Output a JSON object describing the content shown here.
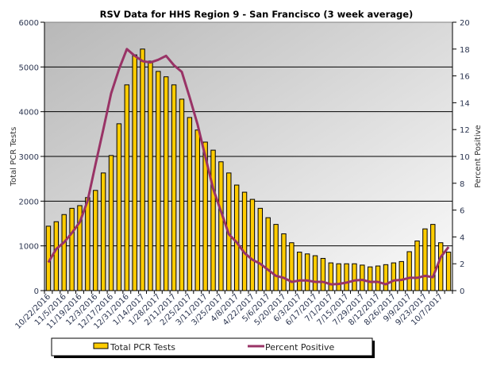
{
  "chart_data": {
    "type": "bar",
    "title": "RSV Data for HHS Region 9 - San Francisco (3 week average)",
    "ylabel": "Total PCR Tests",
    "y2label": "Percent Positive",
    "ylim": [
      0,
      6000
    ],
    "yticks": [
      0,
      1000,
      2000,
      3000,
      4000,
      5000,
      6000
    ],
    "y2lim": [
      0,
      20
    ],
    "y2ticks": [
      0,
      2,
      4,
      6,
      8,
      10,
      12,
      14,
      16,
      18,
      20
    ],
    "grid": true,
    "legend_position": "bottom",
    "categories": [
      "10/22/2016",
      "",
      "11/5/2016",
      "",
      "11/19/2016",
      "",
      "12/3/2016",
      "",
      "12/17/2016",
      "",
      "12/31/2016",
      "",
      "1/14/2017",
      "",
      "1/28/2017",
      "",
      "2/11/2017",
      "",
      "2/25/2017",
      "",
      "3/11/2017",
      "",
      "3/25/2017",
      "",
      "4/8/2017",
      "",
      "4/22/2017",
      "",
      "5/6/2017",
      "",
      "5/20/2017",
      "",
      "6/3/2017",
      "",
      "6/17/2017",
      "",
      "7/1/2017",
      "",
      "7/15/2017",
      "",
      "7/29/2017",
      "",
      "8/12/2017",
      "",
      "8/26/2017",
      "",
      "9/9/2017",
      "",
      "9/23/2017",
      "",
      "10/7/2017",
      ""
    ],
    "series": [
      {
        "name": "Total PCR Tests",
        "type": "bar",
        "axis": "left",
        "color": "#FFCC00",
        "values": [
          1440,
          1540,
          1700,
          1840,
          1900,
          2080,
          2240,
          2630,
          3020,
          3730,
          4600,
          5270,
          5400,
          5130,
          4900,
          4780,
          4600,
          4280,
          3870,
          3590,
          3320,
          3140,
          2880,
          2630,
          2360,
          2200,
          2040,
          1840,
          1630,
          1480,
          1270,
          1070,
          860,
          820,
          780,
          720,
          620,
          600,
          600,
          600,
          570,
          530,
          550,
          580,
          620,
          650,
          870,
          1110,
          1380,
          1480,
          1070,
          860
        ]
      },
      {
        "name": "Percent Positive",
        "type": "line",
        "axis": "right",
        "color": "#993366",
        "values": [
          2.1,
          3.1,
          3.6,
          4.3,
          5.1,
          6.7,
          9.4,
          12.0,
          14.7,
          16.5,
          18.0,
          17.5,
          17.1,
          17.0,
          17.2,
          17.5,
          16.8,
          16.3,
          14.4,
          12.4,
          10.0,
          7.6,
          5.9,
          4.2,
          3.6,
          2.8,
          2.3,
          2.0,
          1.55,
          1.1,
          0.95,
          0.65,
          0.75,
          0.75,
          0.65,
          0.65,
          0.47,
          0.5,
          0.6,
          0.75,
          0.8,
          0.65,
          0.65,
          0.47,
          0.75,
          0.8,
          0.95,
          0.95,
          1.1,
          1.0,
          2.5,
          3.25
        ]
      }
    ]
  }
}
